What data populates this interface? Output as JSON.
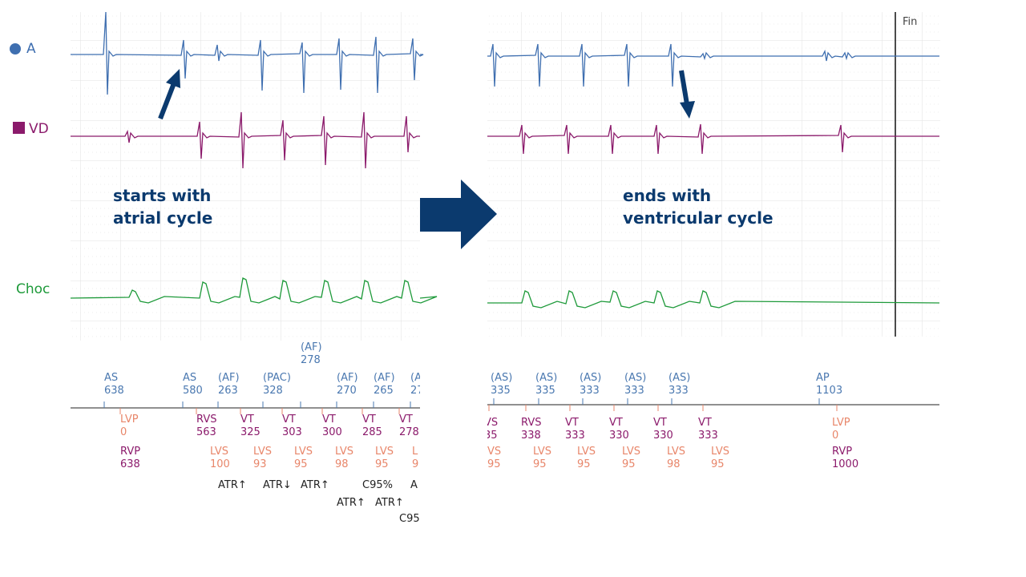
{
  "channels": [
    "A",
    "VD",
    "Choc"
  ],
  "annotations": {
    "left": [
      "starts with",
      "atrial cycle"
    ],
    "right": [
      "ends with",
      "ventricular cycle"
    ]
  },
  "end_label": "Fin",
  "left_upper": [
    {
      "label": "AS",
      "value": "638"
    },
    {
      "label": "AS",
      "value": "580"
    },
    {
      "label": "(AF)",
      "value": "263"
    },
    {
      "label": "(PAC)",
      "value": "328"
    },
    {
      "label": "(AF)",
      "value": "278"
    },
    {
      "label": "(AF)",
      "value": "270"
    },
    {
      "label": "(AF)",
      "value": "265"
    },
    {
      "label": "(A",
      "value": "27"
    }
  ],
  "left_lower": [
    {
      "label": "LVP",
      "value": "0"
    },
    {
      "label": "RVP",
      "value": "638"
    },
    {
      "label": "RVS",
      "value": "563"
    },
    {
      "label": "VT",
      "value": "325"
    },
    {
      "label": "VT",
      "value": "303"
    },
    {
      "label": "VT",
      "value": "300"
    },
    {
      "label": "VT",
      "value": "285"
    },
    {
      "label": "VT",
      "value": "278"
    },
    {
      "label": "LVS",
      "value": "100"
    },
    {
      "label": "LVS",
      "value": "93"
    },
    {
      "label": "LVS",
      "value": "95"
    },
    {
      "label": "LVS",
      "value": "98"
    },
    {
      "label": "LVS",
      "value": "95"
    },
    {
      "label": "L",
      "value": "9"
    }
  ],
  "left_notes": [
    "ATR↑",
    "ATR↓",
    "ATR↑",
    "C95%",
    "A",
    "ATR↑",
    "ATR↑",
    "C95"
  ],
  "right_upper": [
    {
      "label": "(AS)",
      "value": "335"
    },
    {
      "label": "(AS)",
      "value": "335"
    },
    {
      "label": "(AS)",
      "value": "333"
    },
    {
      "label": "(AS)",
      "value": "333"
    },
    {
      "label": "(AS)",
      "value": "333"
    },
    {
      "label": "AP",
      "value": "1103"
    }
  ],
  "right_lower": [
    {
      "label": "VS",
      "value": "35"
    },
    {
      "label": "RVS",
      "value": "338"
    },
    {
      "label": "VT",
      "value": "333"
    },
    {
      "label": "VT",
      "value": "330"
    },
    {
      "label": "VT",
      "value": "330"
    },
    {
      "label": "VT",
      "value": "333"
    },
    {
      "label": "VS",
      "value": "95"
    },
    {
      "label": "LVS",
      "value": "95"
    },
    {
      "label": "LVS",
      "value": "95"
    },
    {
      "label": "LVS",
      "value": "95"
    },
    {
      "label": "LVS",
      "value": "98"
    },
    {
      "label": "LVS",
      "value": "95"
    },
    {
      "label": "LVP",
      "value": "0"
    },
    {
      "label": "RVP",
      "value": "1000"
    }
  ]
}
